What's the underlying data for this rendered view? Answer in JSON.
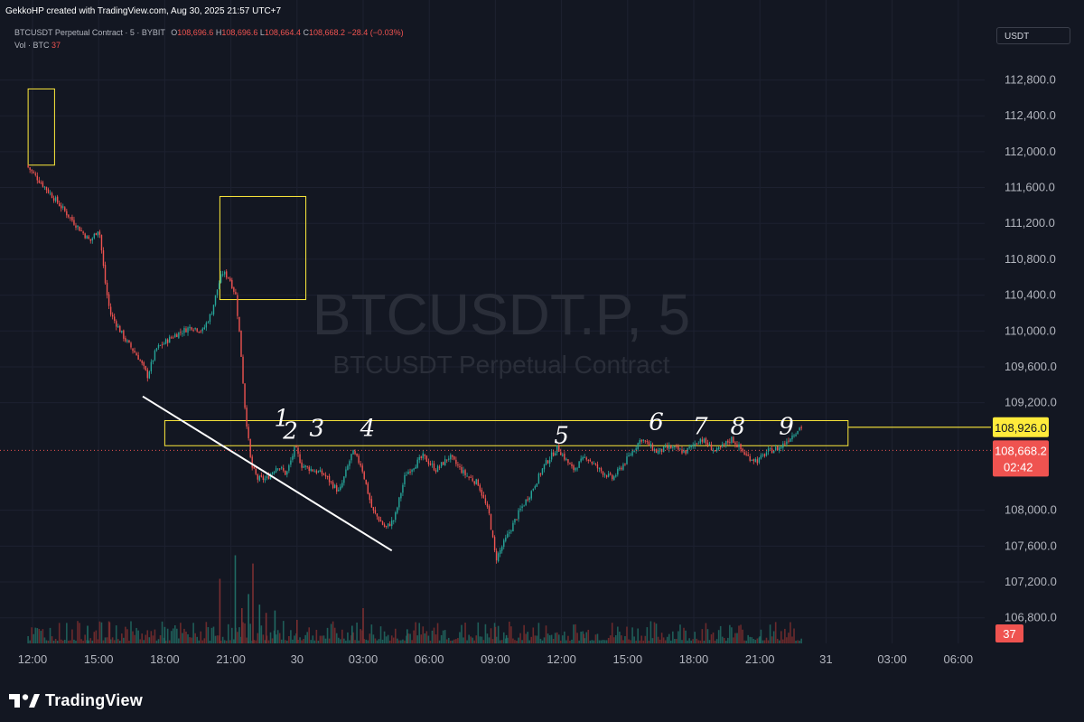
{
  "header": {
    "created_by": "GekkoHP created with TradingView.com, Aug 30, 2025 21:57 UTC+7",
    "symbol_line": "BTCUSDT Perpetual Contract · 5 · BYBIT",
    "ohlc": {
      "o_label": "O",
      "o_value": "108,696.6",
      "h_label": "H",
      "h_value": "108,696.6",
      "l_label": "L",
      "l_value": "108,664.4",
      "c_label": "C",
      "c_value": "108,668.2",
      "change": "−28.4 (−0.03%)"
    },
    "volume_line": "Vol · BTC",
    "volume_value": "37",
    "currency_button": "USDT"
  },
  "watermark": {
    "symbol": "BTCUSDT.P, 5",
    "description": "BTCUSDT Perpetual Contract"
  },
  "branding": {
    "logo_text": "TradingView"
  },
  "colors": {
    "background": "#131722",
    "up": "#26a69a",
    "down": "#ef5350",
    "zone": "#ffeb3b",
    "trendline": "#ffffff",
    "text": "#b2b5be"
  },
  "chart_data": {
    "type": "candlestick",
    "symbol": "BTCUSDT Perpetual Contract",
    "interval": "5",
    "exchange": "BYBIT",
    "ylim": [
      106600,
      113050
    ],
    "y_ticks": [
      "112,800.0",
      "112,400.0",
      "112,000.0",
      "111,600.0",
      "111,200.0",
      "110,800.0",
      "110,400.0",
      "110,000.0",
      "109,600.0",
      "109,200.0",
      "108,000.0",
      "107,600.0",
      "107,200.0",
      "106,800.0"
    ],
    "y_tick_values": [
      112800,
      112400,
      112000,
      111600,
      111200,
      110800,
      110400,
      110000,
      109600,
      109200,
      108000,
      107600,
      107200,
      106800
    ],
    "x_ticks": [
      "12:00",
      "15:00",
      "18:00",
      "21:00",
      "30",
      "03:00",
      "06:00",
      "09:00",
      "12:00",
      "15:00",
      "18:00",
      "21:00",
      "31",
      "03:00",
      "06:00"
    ],
    "x_tick_hours": [
      0,
      3,
      6,
      9,
      12,
      15,
      18,
      21,
      24,
      27,
      30,
      33,
      36,
      39,
      42
    ],
    "price_path": [
      [
        -0.2,
        111850
      ],
      [
        1.0,
        111500
      ],
      [
        2.0,
        111200
      ],
      [
        2.7,
        111000
      ],
      [
        3.1,
        111150
      ],
      [
        3.4,
        110500
      ],
      [
        3.6,
        110200
      ],
      [
        4.3,
        109900
      ],
      [
        4.9,
        109700
      ],
      [
        5.3,
        109500
      ],
      [
        5.7,
        109800
      ],
      [
        6.5,
        109950
      ],
      [
        7.3,
        110050
      ],
      [
        7.8,
        110000
      ],
      [
        8.2,
        110200
      ],
      [
        8.5,
        110500
      ],
      [
        8.7,
        110650
      ],
      [
        9.0,
        110600
      ],
      [
        9.3,
        110400
      ],
      [
        9.5,
        109900
      ],
      [
        9.7,
        109200
      ],
      [
        10.0,
        108500
      ],
      [
        10.3,
        108350
      ],
      [
        10.7,
        108350
      ],
      [
        11.2,
        108500
      ],
      [
        11.6,
        108400
      ],
      [
        12.0,
        108700
      ],
      [
        12.3,
        108500
      ],
      [
        12.8,
        108450
      ],
      [
        13.3,
        108400
      ],
      [
        14.0,
        108200
      ],
      [
        14.6,
        108650
      ],
      [
        15.0,
        108500
      ],
      [
        15.5,
        108000
      ],
      [
        16.1,
        107800
      ],
      [
        16.5,
        107900
      ],
      [
        17.0,
        108400
      ],
      [
        17.8,
        108600
      ],
      [
        18.4,
        108450
      ],
      [
        19.0,
        108600
      ],
      [
        19.7,
        108400
      ],
      [
        20.3,
        108300
      ],
      [
        20.8,
        107950
      ],
      [
        21.1,
        107450
      ],
      [
        21.7,
        107750
      ],
      [
        22.2,
        108000
      ],
      [
        22.7,
        108200
      ],
      [
        23.3,
        108500
      ],
      [
        23.9,
        108700
      ],
      [
        24.6,
        108450
      ],
      [
        25.2,
        108600
      ],
      [
        25.8,
        108450
      ],
      [
        26.4,
        108350
      ],
      [
        27.0,
        108550
      ],
      [
        27.7,
        108800
      ],
      [
        28.4,
        108650
      ],
      [
        29.0,
        108700
      ],
      [
        29.7,
        108650
      ],
      [
        30.4,
        108800
      ],
      [
        31.1,
        108650
      ],
      [
        31.8,
        108800
      ],
      [
        32.5,
        108600
      ],
      [
        33.0,
        108550
      ],
      [
        33.4,
        108650
      ],
      [
        34.0,
        108700
      ],
      [
        34.6,
        108850
      ],
      [
        34.9,
        108926
      ]
    ],
    "annotations": {
      "zones": [
        {
          "x0": -0.2,
          "x1": 1.0,
          "y0": 111850,
          "y1": 112700
        },
        {
          "x0": 8.5,
          "x1": 12.4,
          "y0": 110350,
          "y1": 111500
        },
        {
          "x0": 6.0,
          "x1": 37.0,
          "y0": 108720,
          "y1": 109000
        }
      ],
      "trendline": {
        "x0": 5.0,
        "x1": 16.3,
        "y0": 109270,
        "y1": 107550
      },
      "horizontal_line": {
        "x0": 37.0,
        "y": 108926
      },
      "dotted_price_line": {
        "y": 108668.2
      },
      "handwritten_labels": [
        {
          "text": "1",
          "x": 11.3,
          "y": 108940
        },
        {
          "text": "2",
          "x": 11.7,
          "y": 108800
        },
        {
          "text": "3",
          "x": 12.9,
          "y": 108830
        },
        {
          "text": "4",
          "x": 15.2,
          "y": 108830
        },
        {
          "text": "5",
          "x": 24.0,
          "y": 108750
        },
        {
          "text": "6",
          "x": 28.3,
          "y": 108900
        },
        {
          "text": "7",
          "x": 30.3,
          "y": 108850
        },
        {
          "text": "8",
          "x": 32.0,
          "y": 108850
        },
        {
          "text": "9",
          "x": 34.2,
          "y": 108850
        }
      ]
    },
    "price_labels": [
      {
        "value": 108926,
        "text": "108,926.0",
        "style": "zone"
      },
      {
        "value": 108668.2,
        "text": "108,668.2",
        "countdown": "02:42",
        "style": "last"
      }
    ],
    "volume": {
      "current_label": "37",
      "spikes": [
        [
          2.5,
          0.15
        ],
        [
          3.5,
          0.18
        ],
        [
          6.0,
          0.14
        ],
        [
          8.5,
          0.55
        ],
        [
          9.2,
          0.75
        ],
        [
          9.5,
          0.3
        ],
        [
          9.8,
          0.42
        ],
        [
          10.0,
          0.68
        ],
        [
          10.3,
          0.33
        ],
        [
          10.6,
          0.26
        ],
        [
          11.0,
          0.28
        ],
        [
          12.0,
          0.2
        ],
        [
          14.5,
          0.15
        ],
        [
          15.0,
          0.3
        ],
        [
          17.0,
          0.12
        ],
        [
          21.0,
          0.14
        ],
        [
          21.5,
          0.07
        ],
        [
          25.0,
          0.08
        ],
        [
          33.0,
          0.06
        ]
      ]
    },
    "grid": true,
    "legend": "none"
  }
}
